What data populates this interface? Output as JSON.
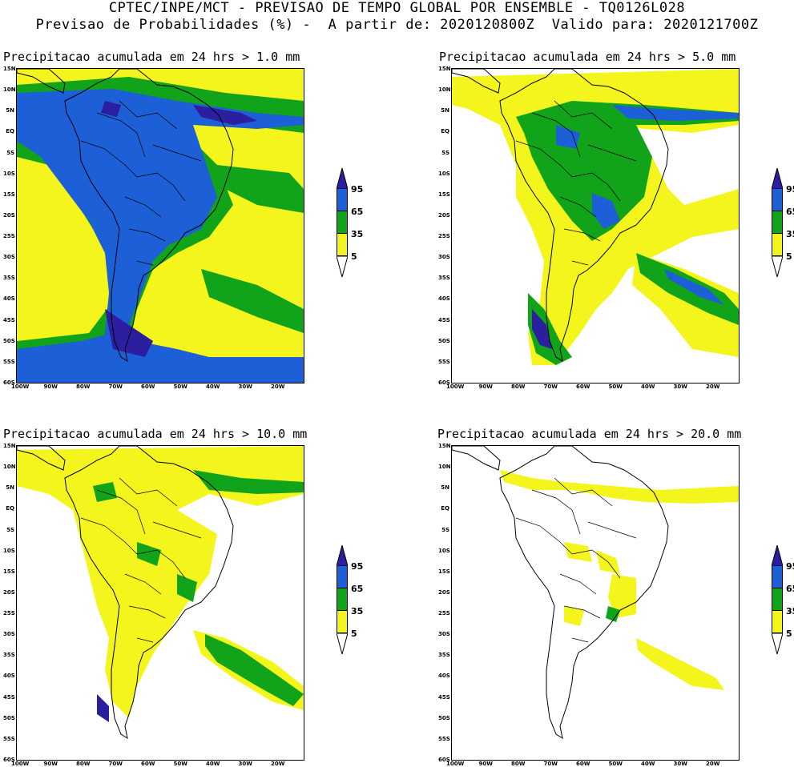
{
  "header": {
    "line1": "CPTEC/INPE/MCT - PREVISAO DE TEMPO GLOBAL POR ENSEMBLE - TQ0126L028",
    "line2": "Previsao de Probabilidades (%) -  A partir de: 2020120800Z  Valido para: 2020121700Z"
  },
  "axes": {
    "lat_labels": [
      "15N",
      "10N",
      "5N",
      "EQ",
      "5S",
      "10S",
      "15S",
      "20S",
      "25S",
      "30S",
      "35S",
      "40S",
      "45S",
      "50S",
      "55S",
      "60S"
    ],
    "lon_labels": [
      "100W",
      "90W",
      "80W",
      "70W",
      "60W",
      "50W",
      "40W",
      "30W",
      "20W"
    ]
  },
  "colorbar": {
    "levels": [
      "95",
      "65",
      "35",
      "5"
    ],
    "colors": {
      "c95": "#2b1fa0",
      "c65": "#1c5fd6",
      "c35": "#11a31a",
      "c5": "#f5f51e"
    }
  },
  "panels": [
    {
      "title": "Precipitacao acumulada em 24 hrs > 1.0 mm",
      "threshold_mm": 1.0
    },
    {
      "title": "Precipitacao acumulada em 24 hrs > 5.0 mm",
      "threshold_mm": 5.0
    },
    {
      "title": "Precipitacao acumulada em 24 hrs > 10.0 mm",
      "threshold_mm": 10.0
    },
    {
      "title": "Precipitacao acumulada em 24 hrs > 20.0 mm",
      "threshold_mm": 20.0
    }
  ]
}
